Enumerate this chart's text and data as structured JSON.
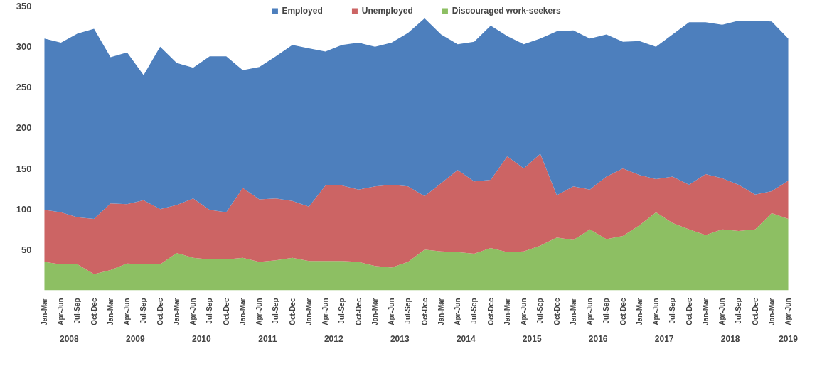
{
  "chart_data": {
    "type": "area",
    "stacked": true,
    "categories": [
      "Jan-Mar",
      "Apr-Jun",
      "Jul-Sep",
      "Oct-Dec",
      "Jan-Mar",
      "Apr-Jun",
      "Jul-Sep",
      "Oct-Dec",
      "Jan-Mar",
      "Apr-Jun",
      "Jul-Sep",
      "Oct-Dec",
      "Jan-Mar",
      "Apr-Jun",
      "Jul-Sep",
      "Oct-Dec",
      "Jan-Mar",
      "Apr-Jun",
      "Jul-Sep",
      "Oct-Dec",
      "Jan-Mar",
      "Apr-Jun",
      "Jul-Sep",
      "Oct-Dec",
      "Jan-Mar",
      "Apr-Jun",
      "Jul-Sep",
      "Oct-Dec",
      "Jan-Mar",
      "Apr-Jun",
      "Jul-Sep",
      "Oct-Dec",
      "Jan-Mar",
      "Apr-Jun",
      "Jul-Sep",
      "Oct-Dec",
      "Jan-Mar",
      "Apr-Jun",
      "Jul-Sep",
      "Oct-Dec",
      "Jan-Mar",
      "Apr-Jun",
      "Jul-Sep",
      "Oct-Dec",
      "Jan-Mar",
      "Apr-Jun"
    ],
    "annotations": [
      "2008",
      "2009",
      "2010",
      "2011",
      "2012",
      "2013",
      "2014",
      "2015",
      "2016",
      "2017",
      "2018",
      "2019"
    ],
    "series": [
      {
        "name": "Discouraged work-seekers",
        "color": "#8dbf63",
        "values": [
          35,
          32,
          32,
          20,
          25,
          33,
          32,
          32,
          46,
          40,
          38,
          38,
          40,
          35,
          37,
          40,
          36,
          36,
          36,
          35,
          30,
          28,
          35,
          50,
          48,
          47,
          45,
          52,
          47,
          48,
          55,
          65,
          62,
          75,
          63,
          67,
          80,
          96,
          83,
          75,
          68,
          75,
          73,
          75,
          95,
          88
        ]
      },
      {
        "name": "Unemployed",
        "color": "#cc6464",
        "values": [
          64,
          64,
          58,
          68,
          82,
          73,
          79,
          68,
          59,
          73,
          61,
          58,
          86,
          77,
          76,
          70,
          67,
          93,
          93,
          89,
          98,
          102,
          93,
          66,
          84,
          101,
          89,
          84,
          118,
          102,
          113,
          52,
          66,
          49,
          77,
          83,
          62,
          41,
          57,
          55,
          75,
          63,
          57,
          43,
          27,
          47
        ]
      },
      {
        "name": "Employed",
        "color": "#4d7fbd",
        "values": [
          211,
          209,
          226,
          234,
          180,
          187,
          154,
          200,
          175,
          161,
          189,
          192,
          145,
          163,
          175,
          192,
          195,
          165,
          173,
          181,
          172,
          175,
          189,
          219,
          183,
          155,
          172,
          190,
          148,
          153,
          142,
          202,
          192,
          186,
          175,
          156,
          165,
          163,
          175,
          200,
          187,
          189,
          202,
          214,
          209,
          175
        ]
      }
    ],
    "ylim": [
      0,
      350
    ],
    "yticks": [
      50,
      100,
      150,
      200,
      250,
      300,
      350
    ],
    "grid": false,
    "legend": "top"
  }
}
